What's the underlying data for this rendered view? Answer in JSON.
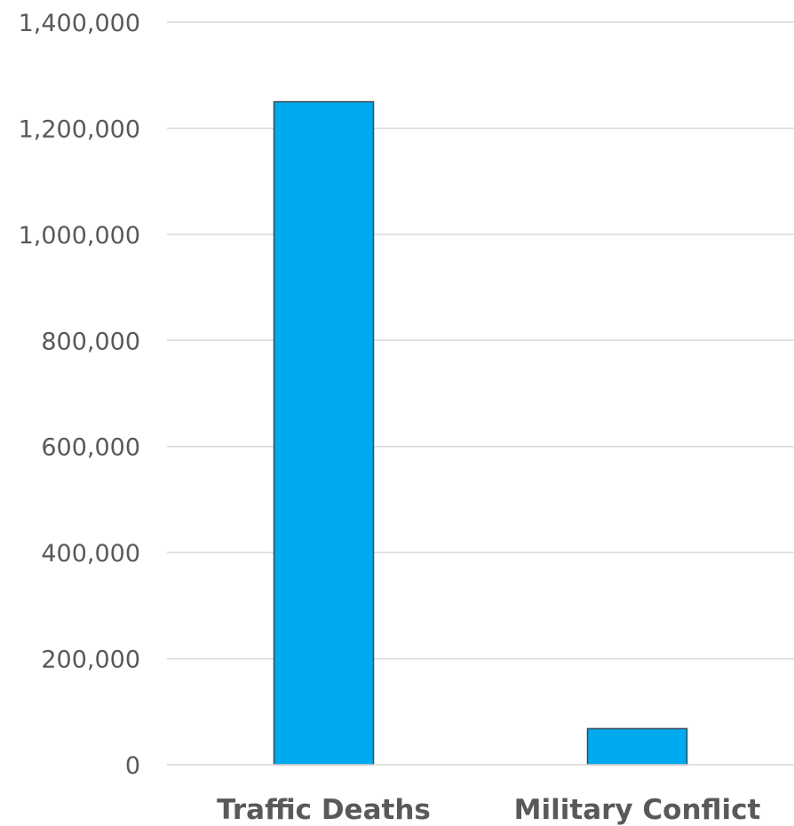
{
  "chart_data": {
    "type": "bar",
    "categories": [
      "Traffic Deaths",
      "Military Conflict"
    ],
    "series": [
      {
        "values": [
          1250000,
          68000
        ]
      }
    ],
    "ylim": [
      0,
      1400000
    ],
    "yticks": [
      0,
      200000,
      400000,
      600000,
      800000,
      1000000,
      1200000,
      1400000
    ],
    "ytick_labels": [
      "0",
      "200,000",
      "400,000",
      "600,000",
      "800,000",
      "1,000,000",
      "1,200,000",
      "1,400,000"
    ],
    "grid": true,
    "legend": "none",
    "colors": {
      "bar": "#00aaee",
      "bar_border": "#3a4a55",
      "grid": "#d9d9d9",
      "text": "#595959"
    }
  }
}
